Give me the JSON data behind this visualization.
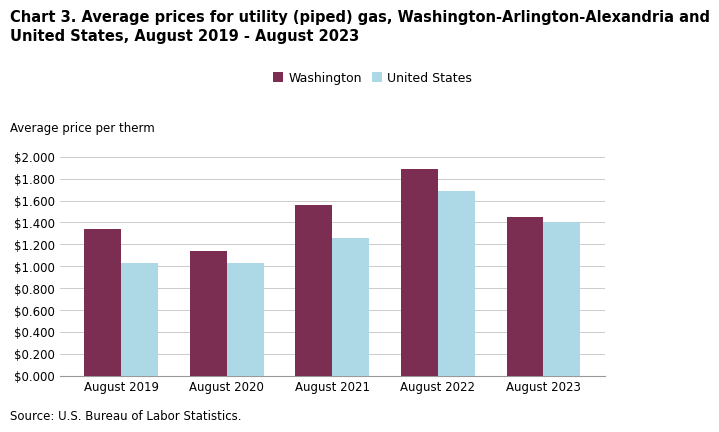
{
  "title_line1": "Chart 3. Average prices for utility (piped) gas, Washington-Arlington-Alexandria and",
  "title_line2": "United States, August 2019 - August 2023",
  "axis_label": "Average price per therm",
  "source": "Source: U.S. Bureau of Labor Statistics.",
  "categories": [
    "August 2019",
    "August 2020",
    "August 2021",
    "August 2022",
    "August 2023"
  ],
  "washington": [
    1.34,
    1.135,
    1.56,
    1.89,
    1.45
  ],
  "united_states": [
    1.03,
    1.03,
    1.26,
    1.69,
    1.4
  ],
  "washington_color": "#7B2D52",
  "us_color": "#ADD8E6",
  "washington_label": "Washington",
  "us_label": "United States",
  "ylim": [
    0,
    2.0
  ],
  "yticks": [
    0.0,
    0.2,
    0.4,
    0.6,
    0.8,
    1.0,
    1.2,
    1.4,
    1.6,
    1.8,
    2.0
  ],
  "bar_width": 0.35,
  "title_fontsize": 10.5,
  "axis_label_fontsize": 8.5,
  "tick_fontsize": 8.5,
  "legend_fontsize": 9,
  "source_fontsize": 8.5,
  "background_color": "#ffffff"
}
